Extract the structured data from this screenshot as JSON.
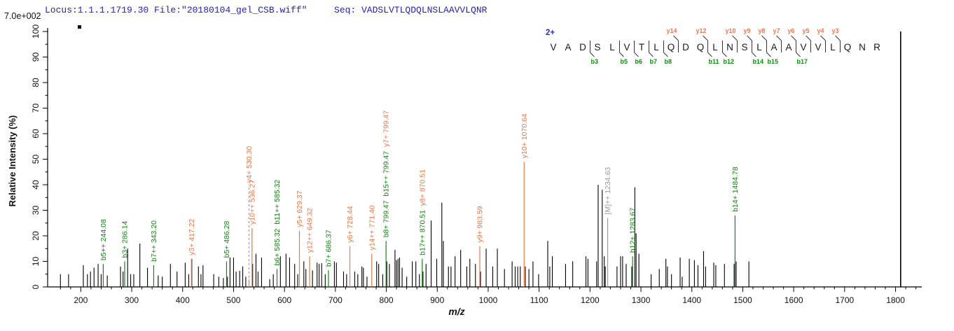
{
  "header": {
    "locus_file": "Locus:1.1.1.1719.30 File:\"20180104_gel_CSB.wiff\"",
    "seq_label": "Seq: VADSLVTLQDQLNSLAAVVLQNR",
    "intensity_scale": "7.0e+002"
  },
  "peptide": {
    "charge": "2+",
    "residues": [
      "V",
      "A",
      "D",
      "S",
      "L",
      "V",
      "T",
      "L",
      "Q",
      "D",
      "Q",
      "L",
      "N",
      "S",
      "L",
      "A",
      "A",
      "V",
      "V",
      "L",
      "Q",
      "N",
      "R"
    ],
    "y_ions": [
      {
        "label": "y14",
        "gap_after": 9
      },
      {
        "label": "y12",
        "gap_after": 11
      },
      {
        "label": "y10",
        "gap_after": 13
      },
      {
        "label": "y9",
        "gap_after": 14
      },
      {
        "label": "y8",
        "gap_after": 15
      },
      {
        "label": "y7",
        "gap_after": 16
      },
      {
        "label": "y6",
        "gap_after": 17
      },
      {
        "label": "y5",
        "gap_after": 18
      },
      {
        "label": "y4",
        "gap_after": 19
      },
      {
        "label": "y3",
        "gap_after": 20
      }
    ],
    "b_ions": [
      {
        "label": "b3",
        "gap_after": 3
      },
      {
        "label": "b5",
        "gap_after": 5
      },
      {
        "label": "b6",
        "gap_after": 6
      },
      {
        "label": "b7",
        "gap_after": 7
      },
      {
        "label": "b8",
        "gap_after": 8
      },
      {
        "label": "b11",
        "gap_after": 11
      },
      {
        "label": "b12",
        "gap_after": 12
      },
      {
        "label": "b14",
        "gap_after": 14
      },
      {
        "label": "b15",
        "gap_after": 15
      },
      {
        "label": "b17",
        "gap_after": 17
      }
    ]
  },
  "chart_data": {
    "type": "bar",
    "subtype": "ms2-stick-spectrum",
    "title": "",
    "xlabel": "m/z",
    "ylabel": "Relative  Intensity (%)",
    "xlim": [
      150,
      1850
    ],
    "ylim": [
      0,
      100
    ],
    "grid": false,
    "x_ticks": {
      "major_step": 100,
      "minor_step": 20,
      "label_min": 200,
      "label_max": 1800
    },
    "y_ticks": {
      "major_step": 10,
      "minor_step": 5
    },
    "colors": {
      "b": "#148514",
      "y": "#ee7744",
      "M": "#9a9a9a",
      "peak": "#000000",
      "seq_y": "#f4764d",
      "seq_b": "#0b8f0b",
      "header_blue": "#2222bb"
    },
    "peaks": [
      [
        160,
        5
      ],
      [
        176,
        5
      ],
      [
        205,
        8.5
      ],
      [
        213,
        5
      ],
      [
        219,
        6
      ],
      [
        226,
        7.5
      ],
      [
        234,
        9
      ],
      [
        240,
        5
      ],
      [
        252,
        4.5
      ],
      [
        278,
        8
      ],
      [
        283,
        6
      ],
      [
        292,
        15
      ],
      [
        298,
        5
      ],
      [
        304,
        5
      ],
      [
        316,
        17
      ],
      [
        331,
        7.5
      ],
      [
        352,
        4.5
      ],
      [
        360,
        4
      ],
      [
        376,
        9
      ],
      [
        389,
        6
      ],
      [
        405,
        9.5
      ],
      [
        412,
        5
      ],
      [
        418,
        11
      ],
      [
        431,
        8
      ],
      [
        436,
        5
      ],
      [
        440,
        8.5
      ],
      [
        461,
        5
      ],
      [
        471,
        4
      ],
      [
        480,
        3.5
      ],
      [
        488,
        4
      ],
      [
        493,
        11.5
      ],
      [
        500,
        11.5
      ],
      [
        505,
        6
      ],
      [
        512,
        6.3
      ],
      [
        518,
        8
      ],
      [
        524,
        4
      ],
      [
        537.5,
        9
      ],
      [
        544,
        13
      ],
      [
        548,
        6
      ],
      [
        555,
        11.5
      ],
      [
        571,
        3
      ],
      [
        578,
        5
      ],
      [
        592,
        12
      ],
      [
        603,
        13
      ],
      [
        610,
        11.5
      ],
      [
        620,
        9
      ],
      [
        626,
        5
      ],
      [
        638,
        10
      ],
      [
        642,
        7
      ],
      [
        655,
        6.5
      ],
      [
        664,
        9.5
      ],
      [
        668,
        9
      ],
      [
        673,
        9.3
      ],
      [
        680,
        5
      ],
      [
        698,
        10
      ],
      [
        702,
        9.5
      ],
      [
        716,
        6
      ],
      [
        722,
        5
      ],
      [
        738,
        6
      ],
      [
        744,
        5
      ],
      [
        752,
        8
      ],
      [
        755,
        7.5
      ],
      [
        762,
        4
      ],
      [
        781,
        10
      ],
      [
        785,
        9
      ],
      [
        793,
        5
      ],
      [
        801,
        10
      ],
      [
        806,
        9
      ],
      [
        817,
        14.5
      ],
      [
        820,
        10.5
      ],
      [
        823,
        11
      ],
      [
        826,
        11.5
      ],
      [
        831,
        7.5
      ],
      [
        840,
        4
      ],
      [
        851,
        10
      ],
      [
        858,
        10
      ],
      [
        865,
        5
      ],
      [
        872,
        6
      ],
      [
        878,
        9
      ],
      [
        888,
        26
      ],
      [
        899,
        11
      ],
      [
        909,
        33
      ],
      [
        912,
        18
      ],
      [
        922,
        8
      ],
      [
        927,
        8
      ],
      [
        935,
        12
      ],
      [
        946,
        14.5
      ],
      [
        958,
        8
      ],
      [
        964,
        11
      ],
      [
        975,
        9
      ],
      [
        985,
        6
      ],
      [
        996,
        15
      ],
      [
        1009,
        8
      ],
      [
        1018,
        15
      ],
      [
        1032,
        7
      ],
      [
        1047,
        10
      ],
      [
        1053,
        8
      ],
      [
        1058,
        8
      ],
      [
        1063,
        8
      ],
      [
        1073,
        8
      ],
      [
        1080,
        7
      ],
      [
        1088,
        10
      ],
      [
        1099,
        5
      ],
      [
        1117,
        18
      ],
      [
        1121,
        8
      ],
      [
        1126,
        12
      ],
      [
        1152,
        9
      ],
      [
        1166,
        10
      ],
      [
        1192,
        12
      ],
      [
        1196,
        11
      ],
      [
        1213,
        10
      ],
      [
        1216,
        40
      ],
      [
        1224,
        38
      ],
      [
        1228,
        12
      ],
      [
        1230,
        8
      ],
      [
        1253,
        8
      ],
      [
        1260,
        12
      ],
      [
        1264,
        12
      ],
      [
        1271,
        9
      ],
      [
        1282,
        8
      ],
      [
        1288,
        39
      ],
      [
        1290.5,
        21
      ],
      [
        1296,
        13
      ],
      [
        1320,
        5
      ],
      [
        1336,
        7
      ],
      [
        1349,
        11
      ],
      [
        1352,
        8
      ],
      [
        1360,
        5
      ],
      [
        1377,
        11.5
      ],
      [
        1381,
        4
      ],
      [
        1395,
        11
      ],
      [
        1405,
        10.5
      ],
      [
        1412,
        8.5
      ],
      [
        1423,
        14
      ],
      [
        1427,
        8
      ],
      [
        1443,
        9.5
      ],
      [
        1447,
        8.5
      ],
      [
        1464,
        9
      ],
      [
        1483,
        9
      ],
      [
        1487,
        10
      ],
      [
        1512,
        10
      ],
      [
        1810,
        100
      ]
    ],
    "annotated_peaks": [
      {
        "mz": 244.08,
        "intensity": 9,
        "parts": [
          {
            "text": "b5++ 244.08",
            "type": "b"
          }
        ]
      },
      {
        "mz": 286.14,
        "intensity": 10,
        "parts": [
          {
            "text": "b3+ 286.14",
            "type": "b"
          }
        ]
      },
      {
        "mz": 343.2,
        "intensity": 8.5,
        "parts": [
          {
            "text": "b7++ 343.20",
            "type": "b"
          }
        ]
      },
      {
        "mz": 417.22,
        "intensity": 11,
        "parts": [
          {
            "text": "y3+ 417.22",
            "type": "y"
          }
        ]
      },
      {
        "mz": 486.28,
        "intensity": 10,
        "parts": [
          {
            "text": "b5+ 486.28",
            "type": "b"
          }
        ]
      },
      {
        "mz": 530.3,
        "intensity": 3,
        "dashed": true,
        "label_from_pct": 40,
        "parts": [
          {
            "text": "y4+ 530.30",
            "type": "y"
          }
        ]
      },
      {
        "mz": 536.27,
        "intensity": 23,
        "parts": [
          {
            "text": "y10++ 536.27",
            "type": "y"
          }
        ]
      },
      {
        "mz": 585.32,
        "intensity": 7,
        "parts": [
          {
            "text": "b6+ 585.32",
            "type": "b"
          },
          {
            "text": "b11++ 585.32",
            "type": "b"
          }
        ]
      },
      {
        "mz": 629.37,
        "intensity": 22,
        "parts": [
          {
            "text": "y5+ 629.37",
            "type": "y"
          }
        ]
      },
      {
        "mz": 649.32,
        "intensity": 12,
        "parts": [
          {
            "text": "y12++ 649.32",
            "type": "y"
          }
        ]
      },
      {
        "mz": 686.37,
        "intensity": 6.5,
        "parts": [
          {
            "text": "b7+ 686.37",
            "type": "b"
          }
        ]
      },
      {
        "mz": 728.44,
        "intensity": 16,
        "parts": [
          {
            "text": "y6+ 728.44",
            "type": "y"
          }
        ]
      },
      {
        "mz": 771.4,
        "intensity": 13,
        "parts": [
          {
            "text": "y14++ 771.40",
            "type": "y"
          }
        ]
      },
      {
        "mz": 799.47,
        "intensity": 18,
        "parts": [
          {
            "text": "b8+ 799.47",
            "type": "b"
          },
          {
            "text": "b15++ 799.47",
            "type": "b"
          },
          {
            "text": "y7+ 799.47",
            "type": "y"
          }
        ]
      },
      {
        "mz": 870.51,
        "intensity": 11,
        "parts": [
          {
            "text": "b17++ 870.51",
            "type": "b"
          },
          {
            "text": "y8+ 870.51",
            "type": "y"
          }
        ]
      },
      {
        "mz": 983.59,
        "intensity": 16,
        "parts": [
          {
            "text": "y9+ 983.59",
            "type": "y"
          }
        ]
      },
      {
        "mz": 1070.64,
        "intensity": 49,
        "parts": [
          {
            "text": "y10+ 1070.64",
            "type": "y"
          }
        ]
      },
      {
        "mz": 1234.63,
        "intensity": 27,
        "parts": [
          {
            "text": "[M]++ 1234.63",
            "type": "M"
          }
        ]
      },
      {
        "mz": 1283.67,
        "intensity": 12,
        "parts": [
          {
            "text": "b12+ 1283.67",
            "type": "b"
          }
        ]
      },
      {
        "mz": 1484.78,
        "intensity": 28,
        "parts": [
          {
            "text": "b14+ 1484.78",
            "type": "b"
          }
        ]
      }
    ]
  }
}
